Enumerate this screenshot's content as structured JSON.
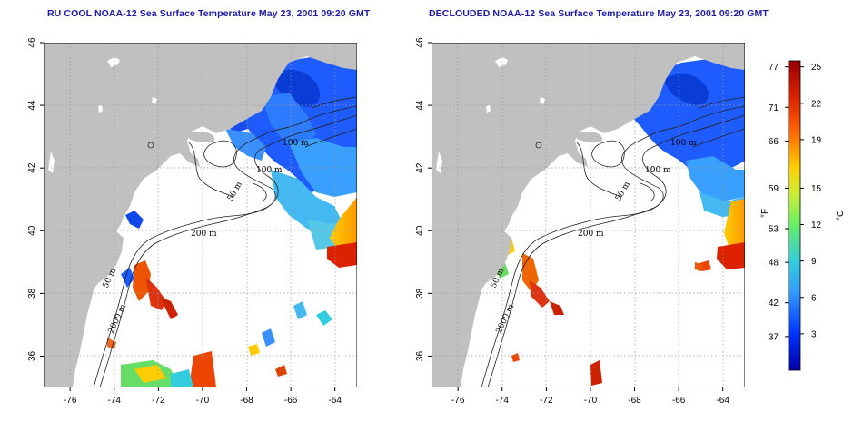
{
  "titles": {
    "left": "RU COOL NOAA-12 Sea Surface Temperature May 23, 2001 09:20 GMT",
    "right": "DECLOUDED NOAA-12 Sea Surface Temperature May 23, 2001 09:20 GMT"
  },
  "axes": {
    "x_ticks": [
      "-76",
      "-74",
      "-72",
      "-70",
      "-68",
      "-66",
      "-64"
    ],
    "x_values": [
      -76,
      -74,
      -72,
      -70,
      -68,
      -66,
      -64
    ],
    "y_ticks": [
      "36",
      "38",
      "40",
      "42",
      "44",
      "46"
    ],
    "y_values": [
      36,
      38,
      40,
      42,
      44,
      46
    ],
    "lon_range": [
      -77.2,
      -63.0
    ],
    "lat_range": [
      35.0,
      46.0
    ],
    "grid": "dotted"
  },
  "contour_labels": {
    "c50": "50 m",
    "c100": "100 m",
    "c200": "200 m",
    "c2000": "2000 m"
  },
  "colorbar": {
    "fahrenheit_label": "°F",
    "celsius_label": "°C",
    "fahrenheit_ticks": [
      "77",
      "71",
      "66",
      "59",
      "53",
      "48",
      "42",
      "37"
    ],
    "fahrenheit_values": [
      77,
      71,
      66,
      59,
      53,
      48,
      42,
      37
    ],
    "celsius_ticks": [
      "25",
      "22",
      "19",
      "15",
      "12",
      "9",
      "6",
      "3"
    ],
    "celsius_values": [
      25,
      22,
      19,
      15,
      12,
      9,
      6,
      3
    ],
    "range_celsius": [
      0,
      25.5
    ],
    "colors": [
      "#0000aa",
      "#0033ff",
      "#3399ff",
      "#33ccdd",
      "#66ee66",
      "#ccee33",
      "#ffcc00",
      "#ff6600",
      "#dd2200",
      "#990000"
    ]
  },
  "land_color": "#c0c0c0"
}
